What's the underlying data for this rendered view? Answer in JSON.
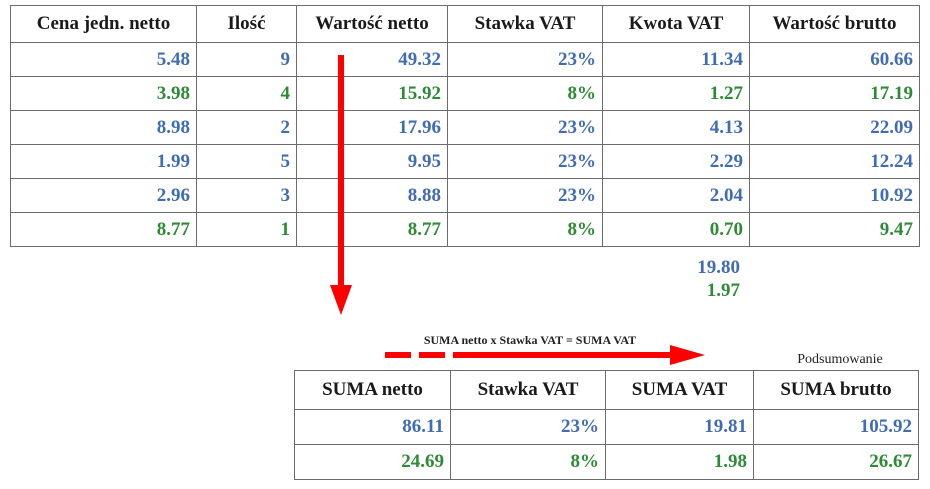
{
  "main_table": {
    "headers": [
      "Cena jedn. netto",
      "Ilość",
      "Wartość netto",
      "Stawka VAT",
      "Kwota VAT",
      "Wartość brutto"
    ],
    "rows": [
      {
        "color": "blue",
        "cells": [
          "5.48",
          "9",
          "49.32",
          "23%",
          "11.34",
          "60.66"
        ]
      },
      {
        "color": "green",
        "cells": [
          "3.98",
          "4",
          "15.92",
          "8%",
          "1.27",
          "17.19"
        ]
      },
      {
        "color": "blue",
        "cells": [
          "8.98",
          "2",
          "17.96",
          "23%",
          "4.13",
          "22.09"
        ]
      },
      {
        "color": "blue",
        "cells": [
          "1.99",
          "5",
          "9.95",
          "23%",
          "2.29",
          "12.24"
        ]
      },
      {
        "color": "blue",
        "cells": [
          "2.96",
          "3",
          "8.88",
          "23%",
          "2.04",
          "10.92"
        ]
      },
      {
        "color": "green",
        "cells": [
          "8.77",
          "1",
          "8.77",
          "8%",
          "0.70",
          "9.47"
        ]
      }
    ]
  },
  "vat_totals": {
    "blue": "19.80",
    "green": "1.97"
  },
  "formula": "SUMA netto x Stawka VAT = SUMA VAT",
  "summary_caption": "Podsumowanie",
  "summary_table": {
    "headers": [
      "SUMA netto",
      "Stawka VAT",
      "SUMA VAT",
      "SUMA brutto"
    ],
    "rows": [
      {
        "color": "blue",
        "cells": [
          "86.11",
          "23%",
          "19.81",
          "105.92"
        ]
      },
      {
        "color": "green",
        "cells": [
          "24.69",
          "8%",
          "1.98",
          "26.67"
        ]
      }
    ]
  },
  "colors": {
    "blue": "#3f6cb5",
    "green": "#2e8b35",
    "arrow": "#ff0000"
  },
  "icons": {
    "down_arrow": "arrow-down-icon",
    "right_arrow": "arrow-right-icon"
  }
}
